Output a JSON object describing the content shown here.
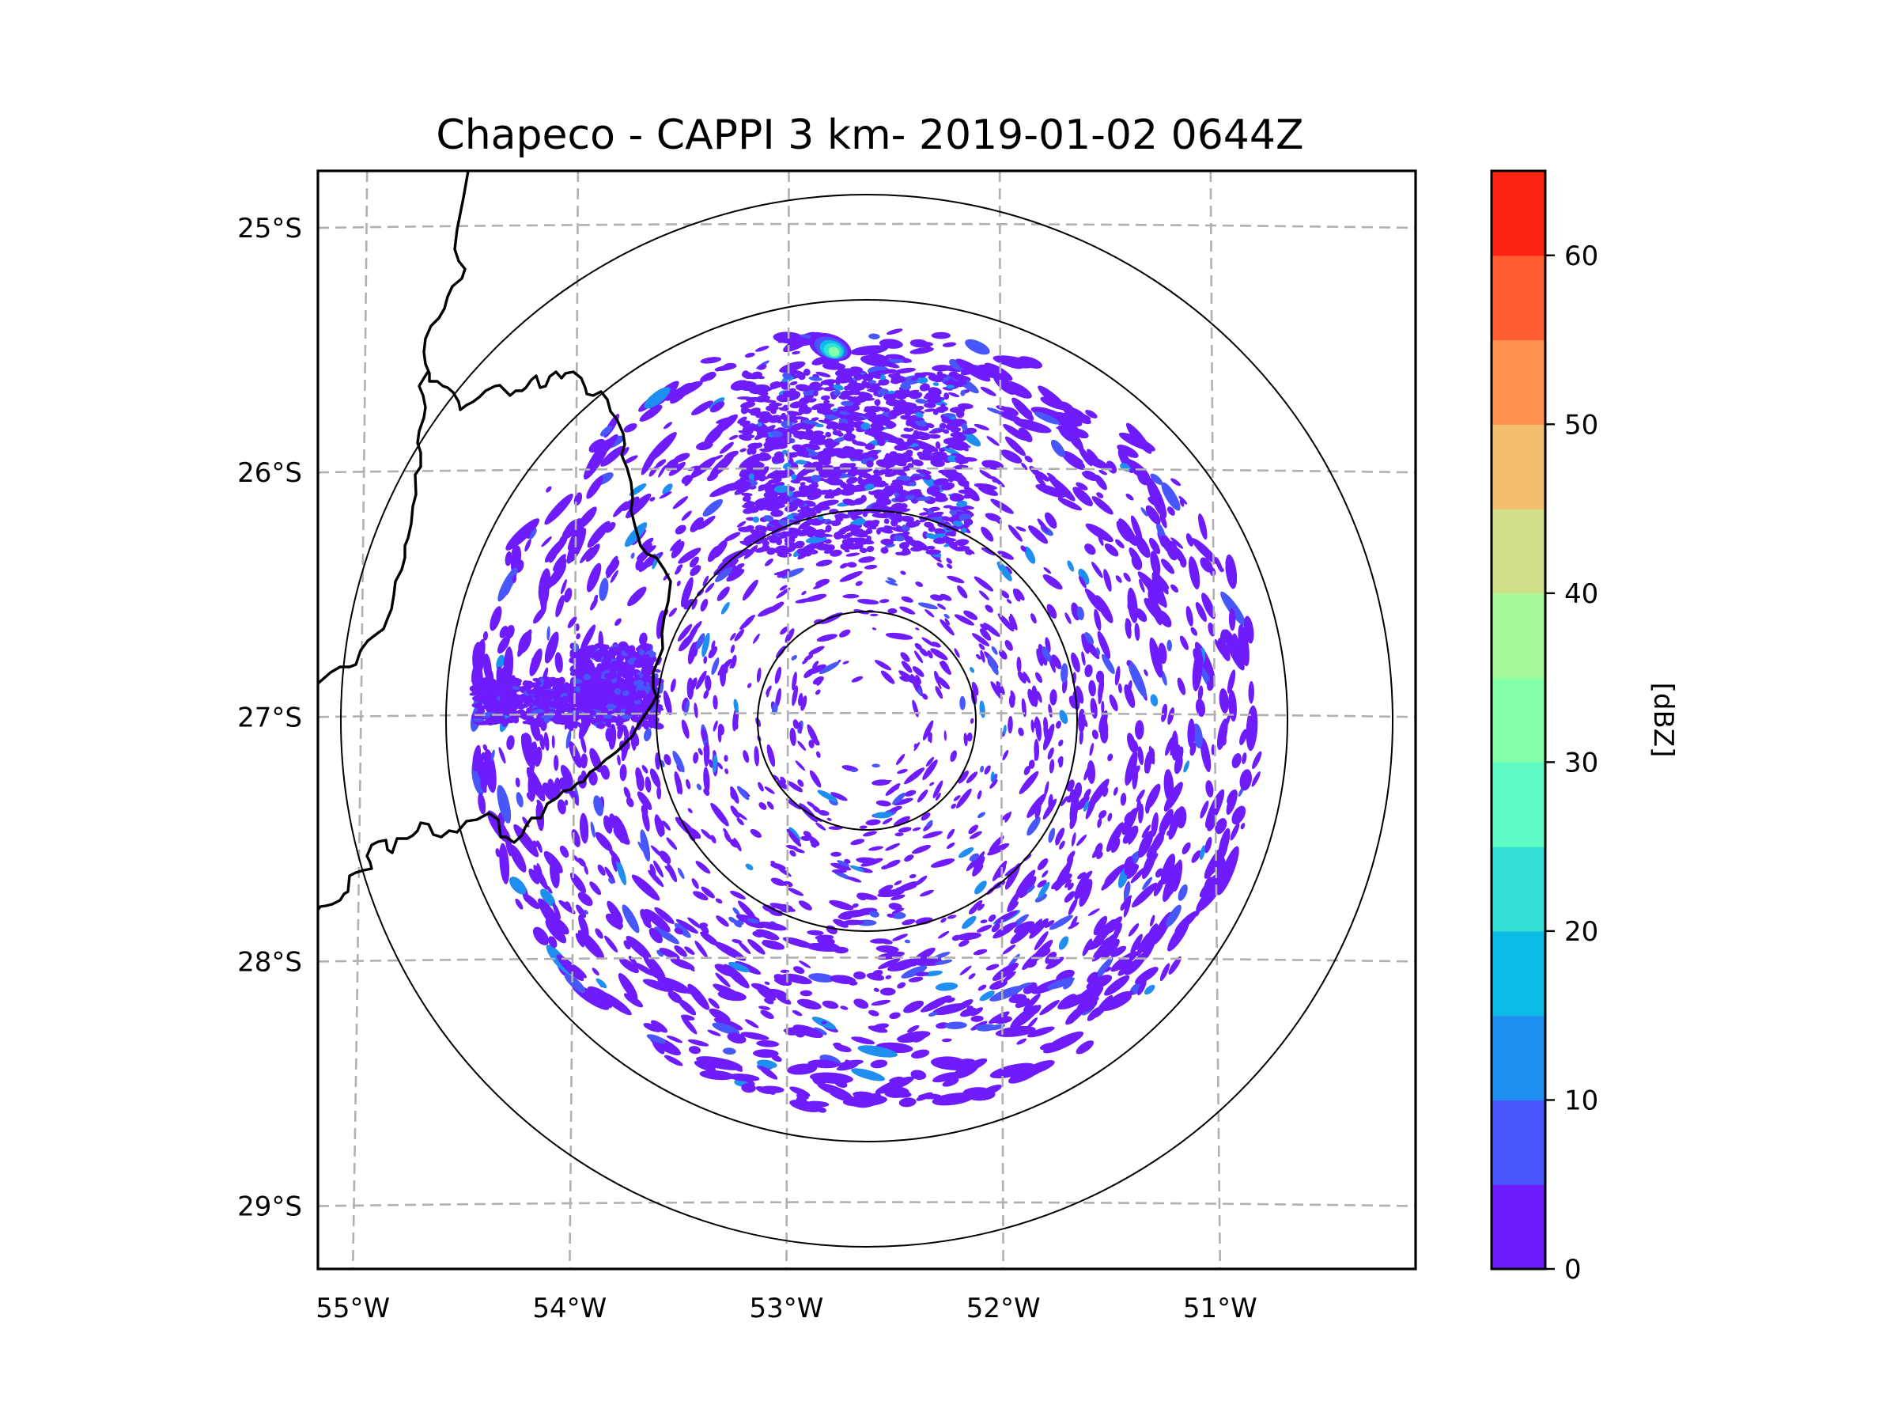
{
  "chart_data": {
    "type": "heatmap",
    "subtype": "radar-ppi-map",
    "title": "Chapeco - CAPPI 3 km- 2019-01-02 0644Z",
    "xlabel": "",
    "ylabel": "",
    "x_ticks": [
      "55°W",
      "54°W",
      "53°W",
      "52°W",
      "51°W"
    ],
    "x_tick_values": [
      -55,
      -54,
      -53,
      -52,
      -51
    ],
    "y_ticks": [
      "25°S",
      "26°S",
      "27°S",
      "28°S",
      "29°S"
    ],
    "y_tick_values": [
      -25,
      -26,
      -27,
      -28,
      -29
    ],
    "xlim": [
      -55.18,
      -50.08
    ],
    "ylim": [
      -29.27,
      -24.78
    ],
    "grid": "dashed gray graticule",
    "radar_site": {
      "name": "Chapeco",
      "lon": -52.6,
      "lat": -27.03
    },
    "range_rings_km": [
      50,
      100,
      200,
      250
    ],
    "colorbar": {
      "label": "[dBZ]",
      "min": 0,
      "max": 65,
      "step": 5,
      "ticks": [
        0,
        10,
        20,
        30,
        40,
        50,
        60
      ],
      "tick_labels": [
        "0",
        "10",
        "20",
        "30",
        "40",
        "50",
        "60"
      ],
      "colors": [
        "#6f1cfd",
        "#4757fb",
        "#1f8ef1",
        "#0bbde6",
        "#33e0d5",
        "#5efcc4",
        "#85ffa9",
        "#a8f99a",
        "#d1df88",
        "#f3bf6e",
        "#ff9150",
        "#ff5d31",
        "#ff2314"
      ]
    },
    "echo_features": [
      {
        "description": "widespread weak clutter/echo 0-10 dBZ within 200 km",
        "dbz_range": [
          0,
          10
        ]
      },
      {
        "description": "strong echo cell near north edge of 200 km ring",
        "lon": -52.8,
        "lat": -25.5,
        "max_dbz": 35
      },
      {
        "description": "dense echo band west of radar along 27°S",
        "lon_range": [
          -54.45,
          -53.6
        ],
        "lat": -26.95,
        "dbz_range": [
          0,
          10
        ]
      },
      {
        "description": "dense echo area north of radar",
        "lon_range": [
          -53.2,
          -52.2
        ],
        "lat_range": [
          -26.3,
          -25.8
        ],
        "dbz_range": [
          0,
          12
        ]
      }
    ],
    "boundaries": [
      "Argentina–Brazil border",
      "Argentina–Paraguay border",
      "Brazil state lines"
    ]
  }
}
